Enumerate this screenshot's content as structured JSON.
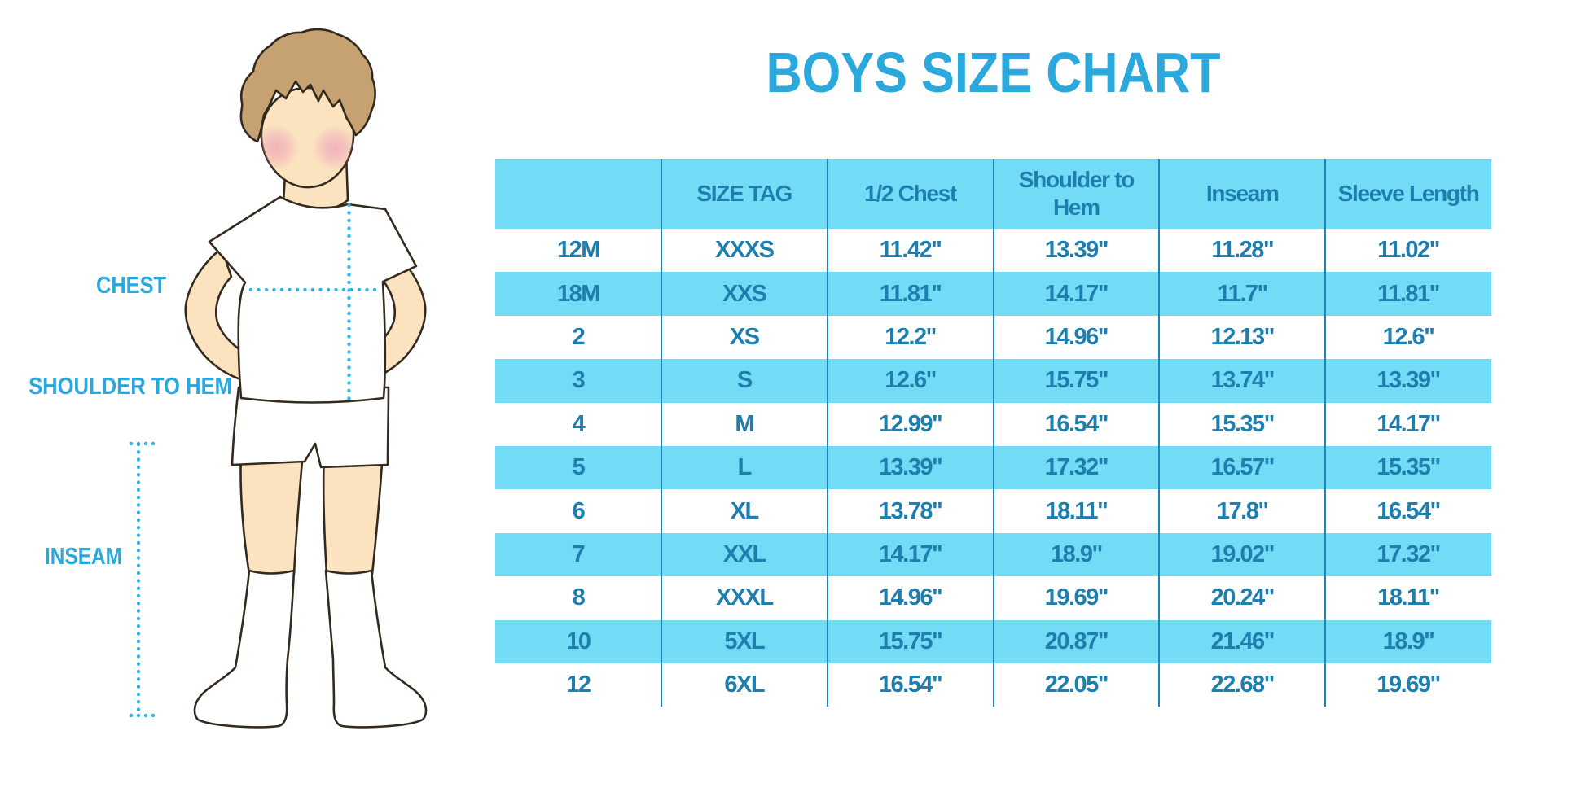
{
  "title": "BOYS SIZE CHART",
  "figure": {
    "illustration": "faceless boy in white t-shirt, shorts and knee socks",
    "labels": {
      "chest": "CHEST",
      "shoulder_to_hem": "SHOULDER TO HEM",
      "inseam": "INSEAM"
    }
  },
  "colors": {
    "accent_cyan_fill": "#72DCF6",
    "title_blue": "#2BA8DC",
    "label_blue": "#2AA8DE",
    "table_text_blue": "#1E7FAE",
    "separator_blue": "#1A87B9",
    "dotted_line_cyan": "#29B2E7",
    "skin": "#FAE3BE",
    "hair": "#C6A172",
    "blush_pink": "#F2A3B3",
    "outline": "#2E2823"
  },
  "chart_data": {
    "type": "table",
    "title": "BOYS SIZE CHART",
    "columns": [
      "",
      "SIZE TAG",
      "1/2 Chest",
      "Shoulder to Hem",
      "Inseam",
      "Sleeve Length"
    ],
    "rows": [
      [
        "12M",
        "XXXS",
        "11.42\"",
        "13.39\"",
        "11.28\"",
        "11.02\""
      ],
      [
        "18M",
        "XXS",
        "11.81\"",
        "14.17\"",
        "11.7\"",
        "11.81\""
      ],
      [
        "2",
        "XS",
        "12.2\"",
        "14.96\"",
        "12.13\"",
        "12.6\""
      ],
      [
        "3",
        "S",
        "12.6\"",
        "15.75\"",
        "13.74\"",
        "13.39\""
      ],
      [
        "4",
        "M",
        "12.99\"",
        "16.54\"",
        "15.35\"",
        "14.17\""
      ],
      [
        "5",
        "L",
        "13.39\"",
        "17.32\"",
        "16.57\"",
        "15.35\""
      ],
      [
        "6",
        "XL",
        "13.78\"",
        "18.11\"",
        "17.8\"",
        "16.54\""
      ],
      [
        "7",
        "XXL",
        "14.17\"",
        "18.9\"",
        "19.02\"",
        "17.32\""
      ],
      [
        "8",
        "XXXL",
        "14.96\"",
        "19.69\"",
        "20.24\"",
        "18.11\""
      ],
      [
        "10",
        "5XL",
        "15.75\"",
        "20.87\"",
        "21.46\"",
        "18.9\""
      ],
      [
        "12",
        "6XL",
        "16.54\"",
        "22.05\"",
        "22.68\"",
        "19.69\""
      ]
    ]
  }
}
